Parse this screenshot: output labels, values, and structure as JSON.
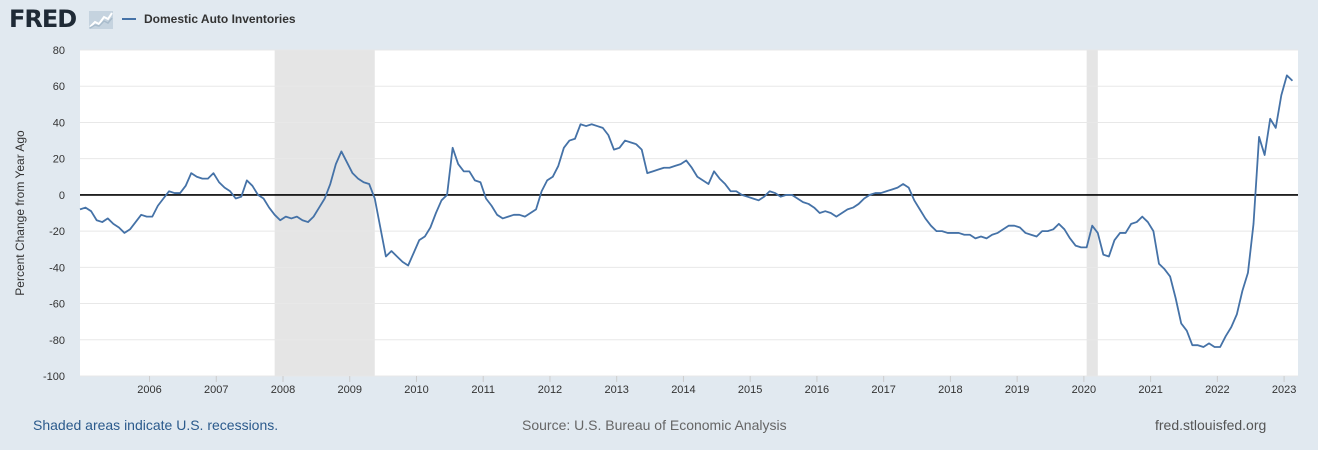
{
  "header": {
    "logo_text": "FRED",
    "legend_label": "Domestic Auto Inventories"
  },
  "footer": {
    "recession_note": "Shaded areas indicate U.S. recessions.",
    "source": "Source: U.S. Bureau of Economic Analysis",
    "url": "fred.stlouisfed.org"
  },
  "colors": {
    "background": "#e1e9f0",
    "plot_background": "#ffffff",
    "series_line": "#4572a7",
    "recession_shade": "#e5e5e5",
    "zero_line": "#000000",
    "gridline": "#e8e8e8"
  },
  "chart_data": {
    "type": "line",
    "title": "",
    "xlabel": "",
    "ylabel": "Percent Change from Year Ago",
    "ylim": [
      -100,
      80
    ],
    "yticks": [
      80,
      60,
      40,
      20,
      0,
      -20,
      -40,
      -60,
      -80,
      -100
    ],
    "xlim": [
      "2005-01",
      "2023-04"
    ],
    "xticks": [
      "2006",
      "2007",
      "2008",
      "2009",
      "2010",
      "2011",
      "2012",
      "2013",
      "2014",
      "2015",
      "2016",
      "2017",
      "2018",
      "2019",
      "2020",
      "2021",
      "2022",
      "2023"
    ],
    "grid": true,
    "legend_position": "top-left",
    "recessions": [
      {
        "start": "2007-12",
        "end": "2009-06"
      },
      {
        "start": "2020-02",
        "end": "2020-04"
      }
    ],
    "series": [
      {
        "name": "Domestic Auto Inventories",
        "x": [
          "2005-01",
          "2005-02",
          "2005-03",
          "2005-04",
          "2005-05",
          "2005-06",
          "2005-07",
          "2005-08",
          "2005-09",
          "2005-10",
          "2005-11",
          "2005-12",
          "2006-01",
          "2006-02",
          "2006-03",
          "2006-04",
          "2006-05",
          "2006-06",
          "2006-07",
          "2006-08",
          "2006-09",
          "2006-10",
          "2006-11",
          "2006-12",
          "2007-01",
          "2007-02",
          "2007-03",
          "2007-04",
          "2007-05",
          "2007-06",
          "2007-07",
          "2007-08",
          "2007-09",
          "2007-10",
          "2007-11",
          "2007-12",
          "2008-01",
          "2008-02",
          "2008-03",
          "2008-04",
          "2008-05",
          "2008-06",
          "2008-07",
          "2008-08",
          "2008-09",
          "2008-10",
          "2008-11",
          "2008-12",
          "2009-01",
          "2009-02",
          "2009-03",
          "2009-04",
          "2009-05",
          "2009-06",
          "2009-07",
          "2009-08",
          "2009-09",
          "2009-10",
          "2009-11",
          "2009-12",
          "2010-01",
          "2010-02",
          "2010-03",
          "2010-04",
          "2010-05",
          "2010-06",
          "2010-07",
          "2010-08",
          "2010-09",
          "2010-10",
          "2010-11",
          "2010-12",
          "2011-01",
          "2011-02",
          "2011-03",
          "2011-04",
          "2011-05",
          "2011-06",
          "2011-07",
          "2011-08",
          "2011-09",
          "2011-10",
          "2011-11",
          "2011-12",
          "2012-01",
          "2012-02",
          "2012-03",
          "2012-04",
          "2012-05",
          "2012-06",
          "2012-07",
          "2012-08",
          "2012-09",
          "2012-10",
          "2012-11",
          "2012-12",
          "2013-01",
          "2013-02",
          "2013-03",
          "2013-04",
          "2013-05",
          "2013-06",
          "2013-07",
          "2013-08",
          "2013-09",
          "2013-10",
          "2013-11",
          "2013-12",
          "2014-01",
          "2014-02",
          "2014-03",
          "2014-04",
          "2014-05",
          "2014-06",
          "2014-07",
          "2014-08",
          "2014-09",
          "2014-10",
          "2014-11",
          "2014-12",
          "2015-01",
          "2015-02",
          "2015-03",
          "2015-04",
          "2015-05",
          "2015-06",
          "2015-07",
          "2015-08",
          "2015-09",
          "2015-10",
          "2015-11",
          "2015-12",
          "2016-01",
          "2016-02",
          "2016-03",
          "2016-04",
          "2016-05",
          "2016-06",
          "2016-07",
          "2016-08",
          "2016-09",
          "2016-10",
          "2016-11",
          "2016-12",
          "2017-01",
          "2017-02",
          "2017-03",
          "2017-04",
          "2017-05",
          "2017-06",
          "2017-07",
          "2017-08",
          "2017-09",
          "2017-10",
          "2017-11",
          "2017-12",
          "2018-01",
          "2018-02",
          "2018-03",
          "2018-04",
          "2018-05",
          "2018-06",
          "2018-07",
          "2018-08",
          "2018-09",
          "2018-10",
          "2018-11",
          "2018-12",
          "2019-01",
          "2019-02",
          "2019-03",
          "2019-04",
          "2019-05",
          "2019-06",
          "2019-07",
          "2019-08",
          "2019-09",
          "2019-10",
          "2019-11",
          "2019-12",
          "2020-01",
          "2020-02",
          "2020-03",
          "2020-04",
          "2020-05",
          "2020-06",
          "2020-07",
          "2020-08",
          "2020-09",
          "2020-10",
          "2020-11",
          "2020-12",
          "2021-01",
          "2021-02",
          "2021-03",
          "2021-04",
          "2021-05",
          "2021-06",
          "2021-07",
          "2021-08",
          "2021-09",
          "2021-10",
          "2021-11",
          "2021-12",
          "2022-01",
          "2022-02",
          "2022-03",
          "2022-04",
          "2022-05",
          "2022-06",
          "2022-07",
          "2022-08",
          "2022-09",
          "2022-10",
          "2022-11",
          "2022-12",
          "2023-01",
          "2023-02",
          "2023-03"
        ],
        "values": [
          -8,
          -7,
          -9,
          -14,
          -15,
          -13,
          -16,
          -18,
          -21,
          -19,
          -15,
          -11,
          -12,
          -12,
          -6,
          -2,
          2,
          1,
          1,
          5,
          12,
          10,
          9,
          9,
          12,
          7,
          4,
          2,
          -2,
          -1,
          8,
          5,
          0,
          -2,
          -7,
          -11,
          -14,
          -12,
          -13,
          -12,
          -14,
          -15,
          -12,
          -7,
          -2,
          6,
          17,
          24,
          18,
          12,
          9,
          7,
          6,
          -2,
          -18,
          -34,
          -31,
          -34,
          -37,
          -39,
          -32,
          -25,
          -23,
          -18,
          -10,
          -3,
          0,
          26,
          17,
          13,
          13,
          8,
          7,
          -2,
          -6,
          -11,
          -13,
          -12,
          -11,
          -11,
          -12,
          -10,
          -8,
          2,
          8,
          10,
          16,
          26,
          30,
          31,
          39,
          38,
          39,
          38,
          37,
          33,
          25,
          26,
          30,
          29,
          28,
          25,
          12,
          13,
          14,
          15,
          15,
          16,
          17,
          19,
          15,
          10,
          8,
          6,
          13,
          9,
          6,
          2,
          2,
          0,
          -1,
          -2,
          -3,
          -1,
          2,
          1,
          -1,
          0,
          0,
          -2,
          -4,
          -5,
          -7,
          -10,
          -9,
          -10,
          -12,
          -10,
          -8,
          -7,
          -5,
          -2,
          0,
          1,
          1,
          2,
          3,
          4,
          6,
          4,
          -3,
          -8,
          -13,
          -17,
          -20,
          -20,
          -21,
          -21,
          -21,
          -22,
          -22,
          -24,
          -23,
          -24,
          -22,
          -21,
          -19,
          -17,
          -17,
          -18,
          -21,
          -22,
          -23,
          -20,
          -20,
          -19,
          -16,
          -19,
          -24,
          -28,
          -29,
          -29,
          -17,
          -21,
          -33,
          -34,
          -25,
          -21,
          -21,
          -16,
          -15,
          -12,
          -15,
          -20,
          -38,
          -41,
          -45,
          -57,
          -71,
          -75,
          -83,
          -83,
          -84,
          -82,
          -84,
          -84,
          -78,
          -73,
          -66,
          -53,
          -43,
          -16,
          32,
          22,
          42,
          37,
          55,
          66,
          63
        ]
      }
    ]
  }
}
